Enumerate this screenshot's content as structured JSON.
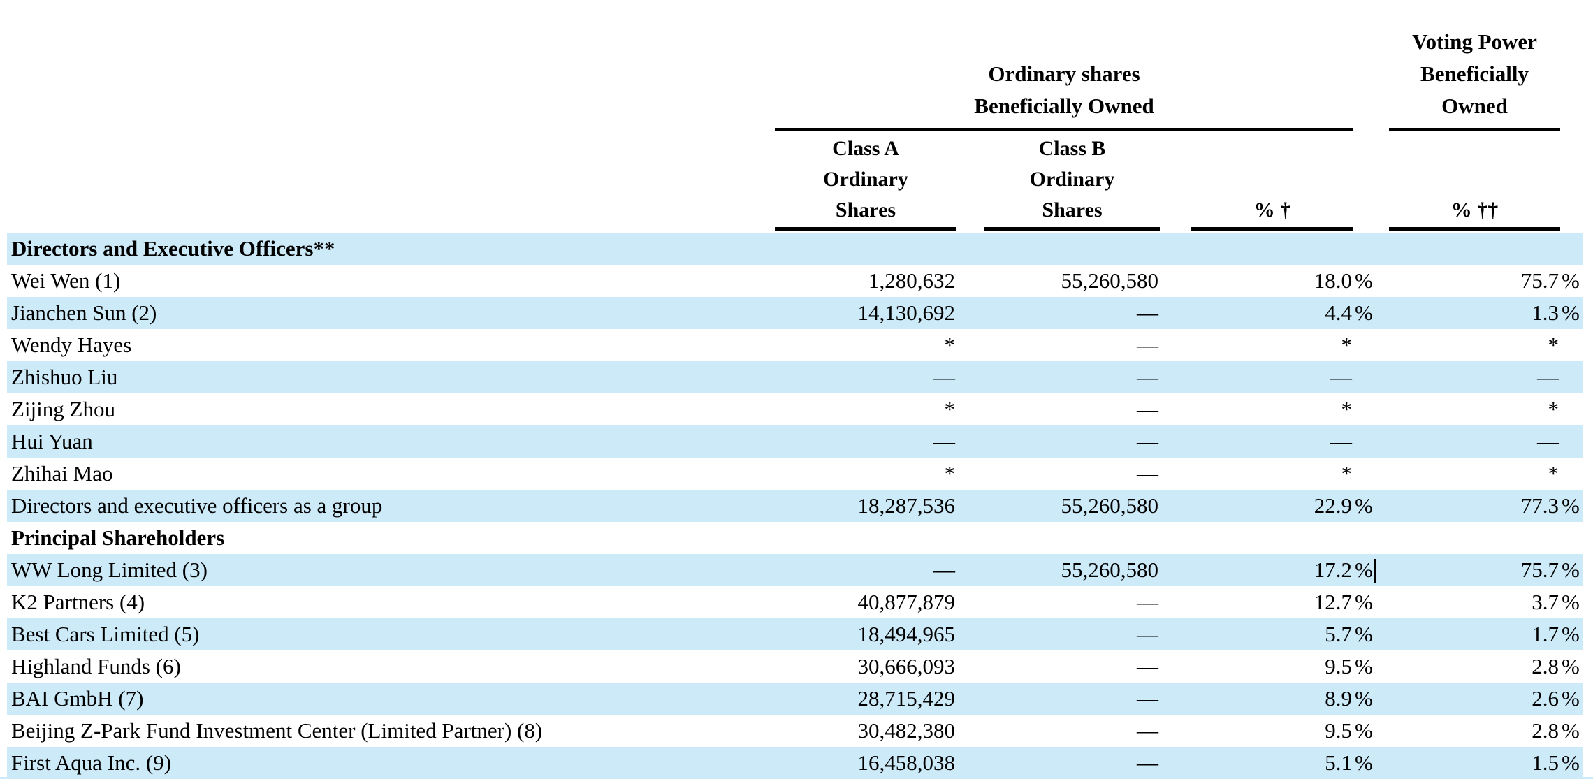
{
  "colors": {
    "row_stripe": "#CDEAF8"
  },
  "table": {
    "header": {
      "ordinary_group": {
        "line1": "Ordinary shares",
        "line2": "Beneficially Owned"
      },
      "voting_group": {
        "line1": "Voting Power",
        "line2": "Beneficially",
        "line3": "Owned"
      },
      "class_a": {
        "line1": "Class A",
        "line2": "Ordinary",
        "line3": "Shares"
      },
      "class_b": {
        "line1": "Class B",
        "line2": "Ordinary",
        "line3": "Shares"
      },
      "pct_ownership": "% †",
      "pct_voting": "% ††"
    },
    "rows": [
      {
        "label": "Directors and Executive Officers**",
        "bold": true,
        "class_a": "",
        "class_b": "",
        "pct1": "",
        "pct1_sym": "",
        "pct2": "",
        "pct2_sym": ""
      },
      {
        "label": "Wei Wen (1)",
        "class_a": "1,280,632",
        "class_b": "55,260,580",
        "pct1": "18.0",
        "pct1_sym": "%",
        "pct2": "75.7",
        "pct2_sym": "%"
      },
      {
        "label": "Jianchen Sun (2)",
        "class_a": "14,130,692",
        "class_b": "—",
        "pct1": "4.4",
        "pct1_sym": "%",
        "pct2": "1.3",
        "pct2_sym": "%"
      },
      {
        "label": "Wendy Hayes",
        "class_a": "*",
        "class_b": "—",
        "pct1": "*",
        "pct1_sym": "",
        "pct2": "*",
        "pct2_sym": ""
      },
      {
        "label": "Zhishuo Liu",
        "class_a": "—",
        "class_b": "—",
        "pct1": "—",
        "pct1_sym": "",
        "pct2": "—",
        "pct2_sym": ""
      },
      {
        "label": "Zijing Zhou",
        "class_a": "*",
        "class_b": "—",
        "pct1": "*",
        "pct1_sym": "",
        "pct2": "*",
        "pct2_sym": ""
      },
      {
        "label": "Hui Yuan",
        "class_a": "—",
        "class_b": "—",
        "pct1": "—",
        "pct1_sym": "",
        "pct2": "—",
        "pct2_sym": ""
      },
      {
        "label": "Zhihai Mao",
        "class_a": "*",
        "class_b": "—",
        "pct1": "*",
        "pct1_sym": "",
        "pct2": "*",
        "pct2_sym": ""
      },
      {
        "label": "Directors and executive officers as a group",
        "class_a": "18,287,536",
        "class_b": "55,260,580",
        "pct1": "22.9",
        "pct1_sym": "%",
        "pct2": "77.3",
        "pct2_sym": "%"
      },
      {
        "label": "Principal Shareholders",
        "bold": true,
        "class_a": "",
        "class_b": "",
        "pct1": "",
        "pct1_sym": "",
        "pct2": "",
        "pct2_sym": ""
      },
      {
        "label": "WW Long Limited (3)",
        "class_a": "—",
        "class_b": "55,260,580",
        "pct1": "17.2",
        "pct1_sym": "%",
        "pct2": "75.7",
        "pct2_sym": "%",
        "cursor": true
      },
      {
        "label": "K2 Partners (4)",
        "class_a": "40,877,879",
        "class_b": "—",
        "pct1": "12.7",
        "pct1_sym": "%",
        "pct2": "3.7",
        "pct2_sym": "%"
      },
      {
        "label": "Best Cars Limited (5)",
        "class_a": "18,494,965",
        "class_b": "—",
        "pct1": "5.7",
        "pct1_sym": "%",
        "pct2": "1.7",
        "pct2_sym": "%"
      },
      {
        "label": "Highland Funds (6)",
        "class_a": "30,666,093",
        "class_b": "—",
        "pct1": "9.5",
        "pct1_sym": "%",
        "pct2": "2.8",
        "pct2_sym": "%"
      },
      {
        "label": "BAI GmbH (7)",
        "class_a": "28,715,429",
        "class_b": "—",
        "pct1": "8.9",
        "pct1_sym": "%",
        "pct2": "2.6",
        "pct2_sym": "%"
      },
      {
        "label": "Beijing Z-Park Fund Investment Center (Limited Partner) (8)",
        "class_a": "30,482,380",
        "class_b": "—",
        "pct1": "9.5",
        "pct1_sym": "%",
        "pct2": "2.8",
        "pct2_sym": "%"
      },
      {
        "label": "First Aqua Inc. (9)",
        "class_a": "16,458,038",
        "class_b": "—",
        "pct1": "5.1",
        "pct1_sym": "%",
        "pct2": "1.5",
        "pct2_sym": "%"
      }
    ]
  }
}
